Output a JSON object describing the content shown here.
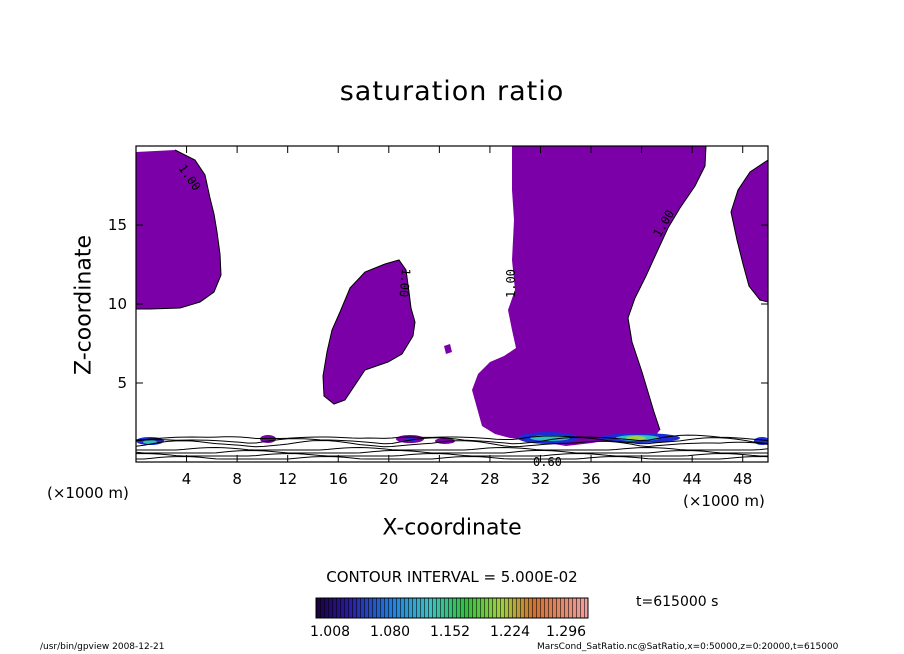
{
  "title": "saturation ratio",
  "contour_interval": "CONTOUR INTERVAL = 5.000E-02",
  "time_label": "t=615000 s",
  "footer": {
    "left": "/usr/bin/gpview   2008-12-21",
    "right": "MarsCond_SatRatio.nc@SatRatio,x=0:50000,z=0:20000,t=615000"
  },
  "colors": {
    "fill": "#7b00a8",
    "contour": "#000000"
  },
  "chart_data": {
    "type": "contour",
    "title": "saturation ratio",
    "xlabel": "X-coordinate",
    "ylabel": "Z-coordinate",
    "x_unit": "(×1000 m)",
    "xlim": [
      0,
      50
    ],
    "ylim": [
      0,
      20
    ],
    "x_ticks": [
      4,
      8,
      12,
      16,
      20,
      24,
      28,
      32,
      36,
      40,
      44,
      48
    ],
    "y_ticks": [
      5,
      10,
      15
    ],
    "contour_interval": 0.05,
    "contour_labels": [
      "1.00",
      "1.00",
      "1.00",
      "1.00",
      "0.60"
    ],
    "colorbar": {
      "ticks": [
        "1.008",
        "1.080",
        "1.152",
        "1.224",
        "1.296"
      ],
      "min": 1.008,
      "max": 1.296
    },
    "regions_above_1": [
      {
        "name": "left-upper",
        "x_range": [
          0,
          6.6
        ],
        "z_range": [
          9.6,
          19.7
        ]
      },
      {
        "name": "mid-left",
        "x_range": [
          14.6,
          22.1
        ],
        "z_range": [
          3.7,
          12.7
        ]
      },
      {
        "name": "center",
        "x_range": [
          26.2,
          44.8
        ],
        "z_range": [
          1.0,
          20.0
        ]
      },
      {
        "name": "right-upper",
        "x_range": [
          46.5,
          50.0
        ],
        "z_range": [
          11.7,
          18.9
        ]
      }
    ],
    "time": "t=615000 s"
  }
}
